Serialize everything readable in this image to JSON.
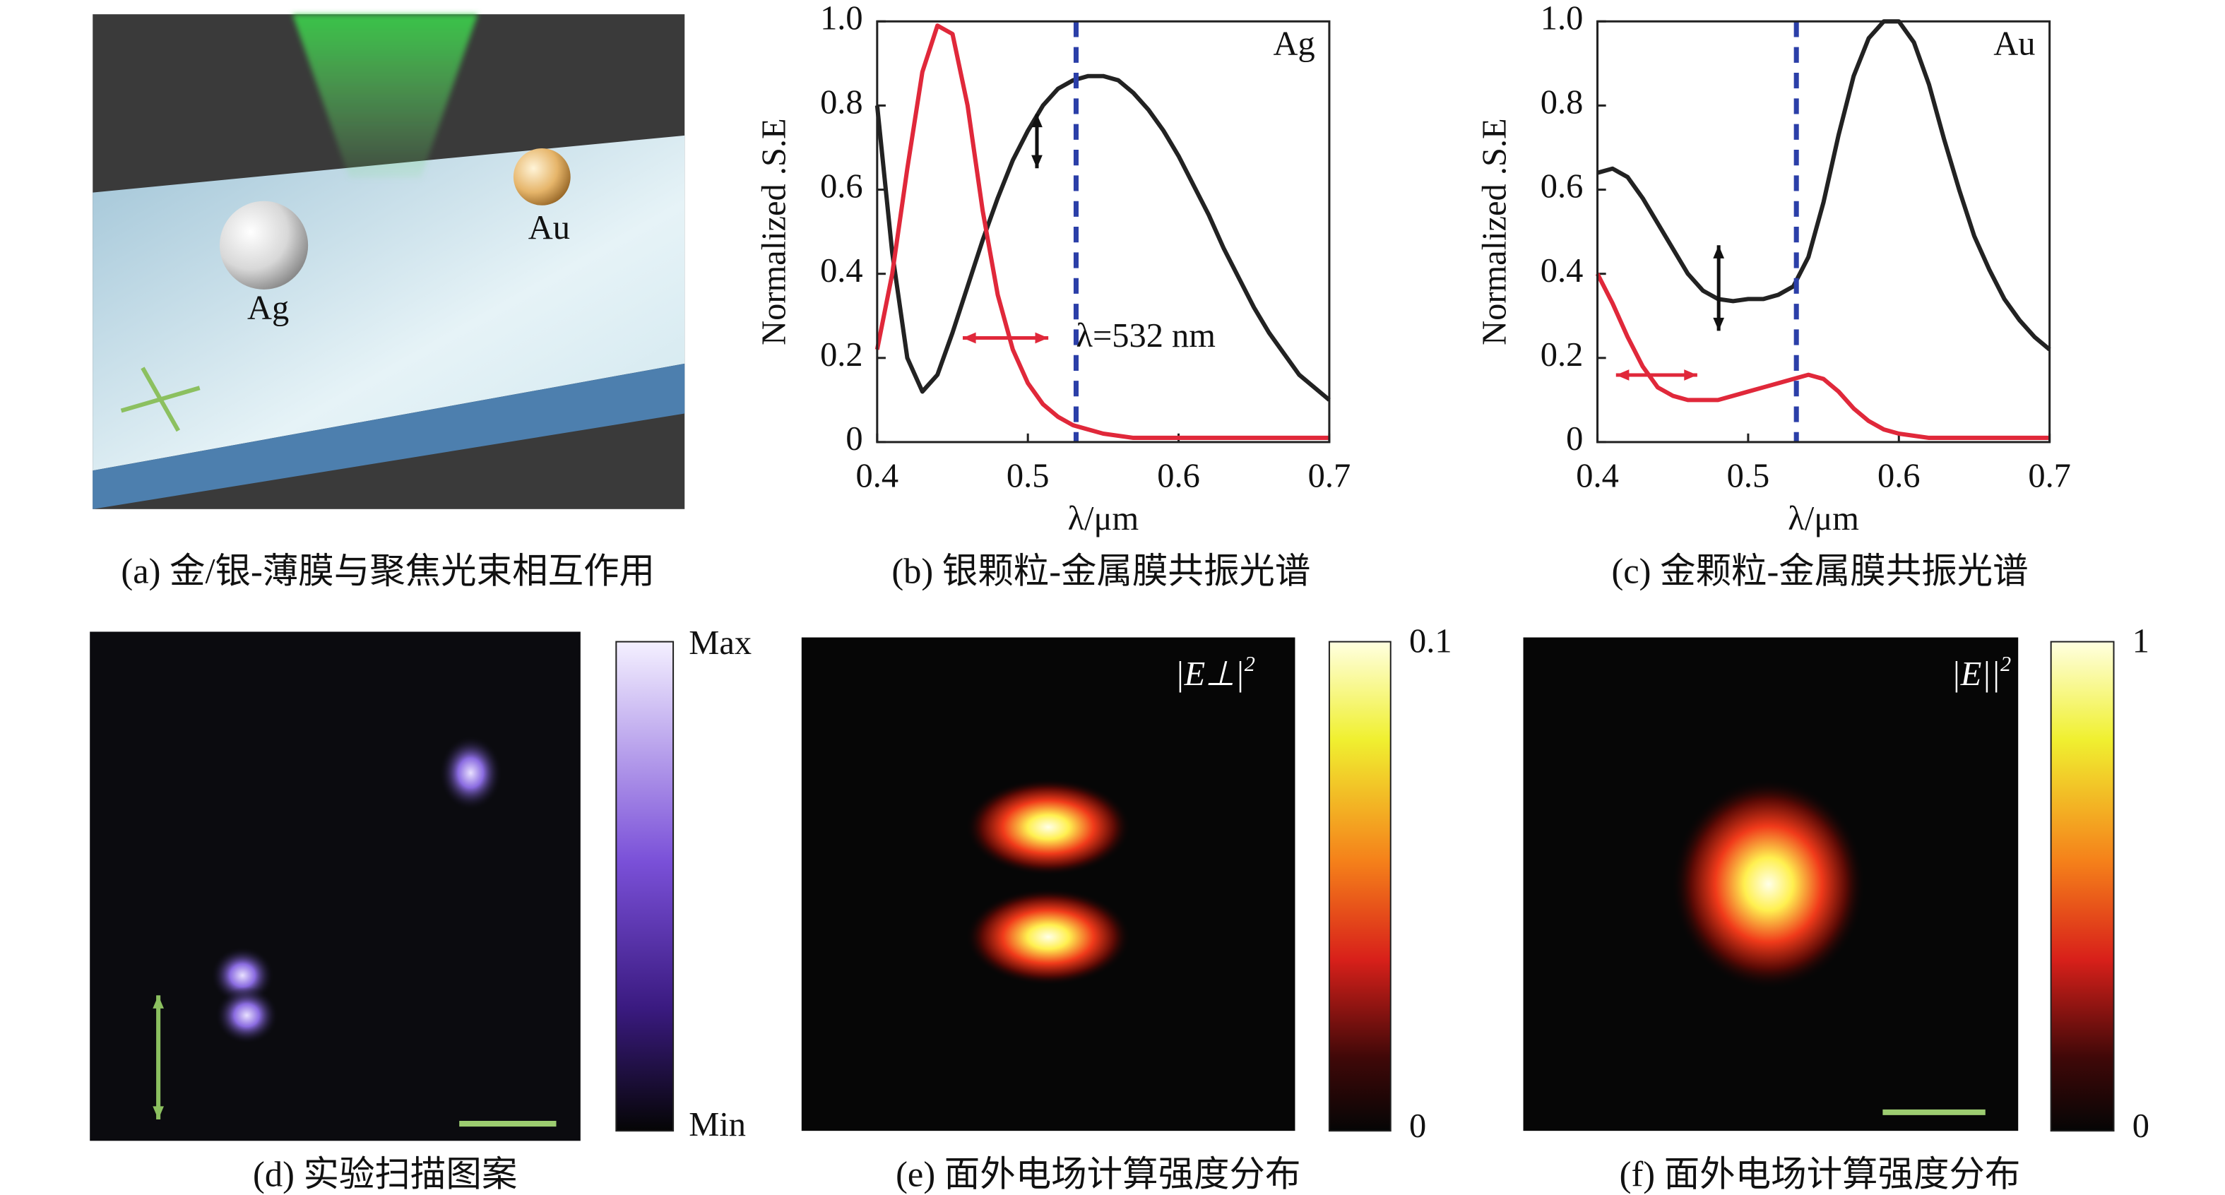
{
  "chart_data": [
    {
      "type": "line",
      "annotation": "Ag",
      "xlabel": "λ/μm",
      "ylabel": "Normalized .S.E",
      "x": [
        0.4,
        0.41,
        0.42,
        0.43,
        0.44,
        0.45,
        0.46,
        0.47,
        0.48,
        0.49,
        0.5,
        0.51,
        0.52,
        0.53,
        0.54,
        0.55,
        0.56,
        0.57,
        0.58,
        0.59,
        0.6,
        0.61,
        0.62,
        0.63,
        0.64,
        0.65,
        0.66,
        0.67,
        0.68,
        0.69,
        0.7
      ],
      "series": [
        {
          "color": "#222222",
          "values": [
            0.8,
            0.45,
            0.2,
            0.12,
            0.16,
            0.26,
            0.37,
            0.48,
            0.58,
            0.67,
            0.74,
            0.8,
            0.84,
            0.86,
            0.87,
            0.87,
            0.86,
            0.83,
            0.79,
            0.74,
            0.68,
            0.61,
            0.54,
            0.46,
            0.39,
            0.32,
            0.26,
            0.21,
            0.16,
            0.13,
            0.1
          ]
        },
        {
          "color": "#e0283a",
          "values": [
            0.22,
            0.4,
            0.65,
            0.88,
            0.99,
            0.97,
            0.8,
            0.55,
            0.35,
            0.22,
            0.14,
            0.09,
            0.06,
            0.04,
            0.03,
            0.02,
            0.015,
            0.01,
            0.01,
            0.01,
            0.01,
            0.01,
            0.01,
            0.01,
            0.01,
            0.01,
            0.01,
            0.01,
            0.01,
            0.01,
            0.01
          ]
        }
      ],
      "reference_line": 0.532,
      "reference_color": "#2b3fa8",
      "reference_label": "λ=532 nm",
      "xlim": [
        0.4,
        0.7
      ],
      "ylim": [
        0,
        1
      ],
      "xticks": [
        0.4,
        0.5,
        0.6,
        0.7
      ],
      "yticks": [
        0,
        0.2,
        0.4,
        0.6,
        0.8,
        {
          "value": 1,
          "label": "1.0"
        }
      ]
    },
    {
      "type": "line",
      "annotation": "Au",
      "xlabel": "λ/μm",
      "ylabel": "Normalized .S.E",
      "x": [
        0.4,
        0.41,
        0.42,
        0.43,
        0.44,
        0.45,
        0.46,
        0.47,
        0.48,
        0.49,
        0.5,
        0.51,
        0.52,
        0.53,
        0.54,
        0.55,
        0.56,
        0.57,
        0.58,
        0.59,
        0.6,
        0.61,
        0.62,
        0.63,
        0.64,
        0.65,
        0.66,
        0.67,
        0.68,
        0.69,
        0.7
      ],
      "series": [
        {
          "color": "#222222",
          "values": [
            0.64,
            0.65,
            0.63,
            0.58,
            0.52,
            0.46,
            0.4,
            0.36,
            0.34,
            0.335,
            0.34,
            0.34,
            0.35,
            0.37,
            0.44,
            0.57,
            0.73,
            0.87,
            0.96,
            1.0,
            1.0,
            0.95,
            0.85,
            0.72,
            0.6,
            0.49,
            0.41,
            0.34,
            0.29,
            0.25,
            0.22
          ]
        },
        {
          "color": "#e0283a",
          "values": [
            0.4,
            0.33,
            0.25,
            0.18,
            0.13,
            0.11,
            0.1,
            0.1,
            0.1,
            0.11,
            0.12,
            0.13,
            0.14,
            0.15,
            0.16,
            0.15,
            0.12,
            0.08,
            0.05,
            0.03,
            0.02,
            0.015,
            0.01,
            0.01,
            0.01,
            0.01,
            0.01,
            0.01,
            0.01,
            0.01,
            0.01
          ]
        }
      ],
      "reference_line": 0.532,
      "reference_color": "#2b3fa8",
      "xlim": [
        0.4,
        0.7
      ],
      "ylim": [
        0,
        1
      ],
      "xticks": [
        0.4,
        0.5,
        0.6,
        0.7
      ],
      "yticks": [
        0,
        0.2,
        0.4,
        0.6,
        0.8,
        {
          "value": 1,
          "label": "1.0"
        }
      ]
    }
  ],
  "figure": {
    "panel_a": {
      "labels": [
        "Ag",
        "Au"
      ]
    },
    "captions": [
      "(a) 金/银-薄膜与聚焦光束相互作用",
      "(b) 银颗粒-金属膜共振光谱",
      "(c) 金颗粒-金属膜共振光谱",
      "(d) 实验扫描图案",
      "(e) 面外电场计算强度分布",
      "(f) 面外电场计算强度分布"
    ],
    "colorbar_d": {
      "top": "Max",
      "bottom": "Min"
    },
    "colorbar_e": {
      "ticks": [
        0,
        0.1
      ],
      "field_label": {
        "text": "|E⊥|",
        "sup": "2"
      }
    },
    "colorbar_f": {
      "ticks": [
        0,
        1
      ],
      "field_label": {
        "text": "|E||",
        "sup": "2"
      }
    }
  }
}
